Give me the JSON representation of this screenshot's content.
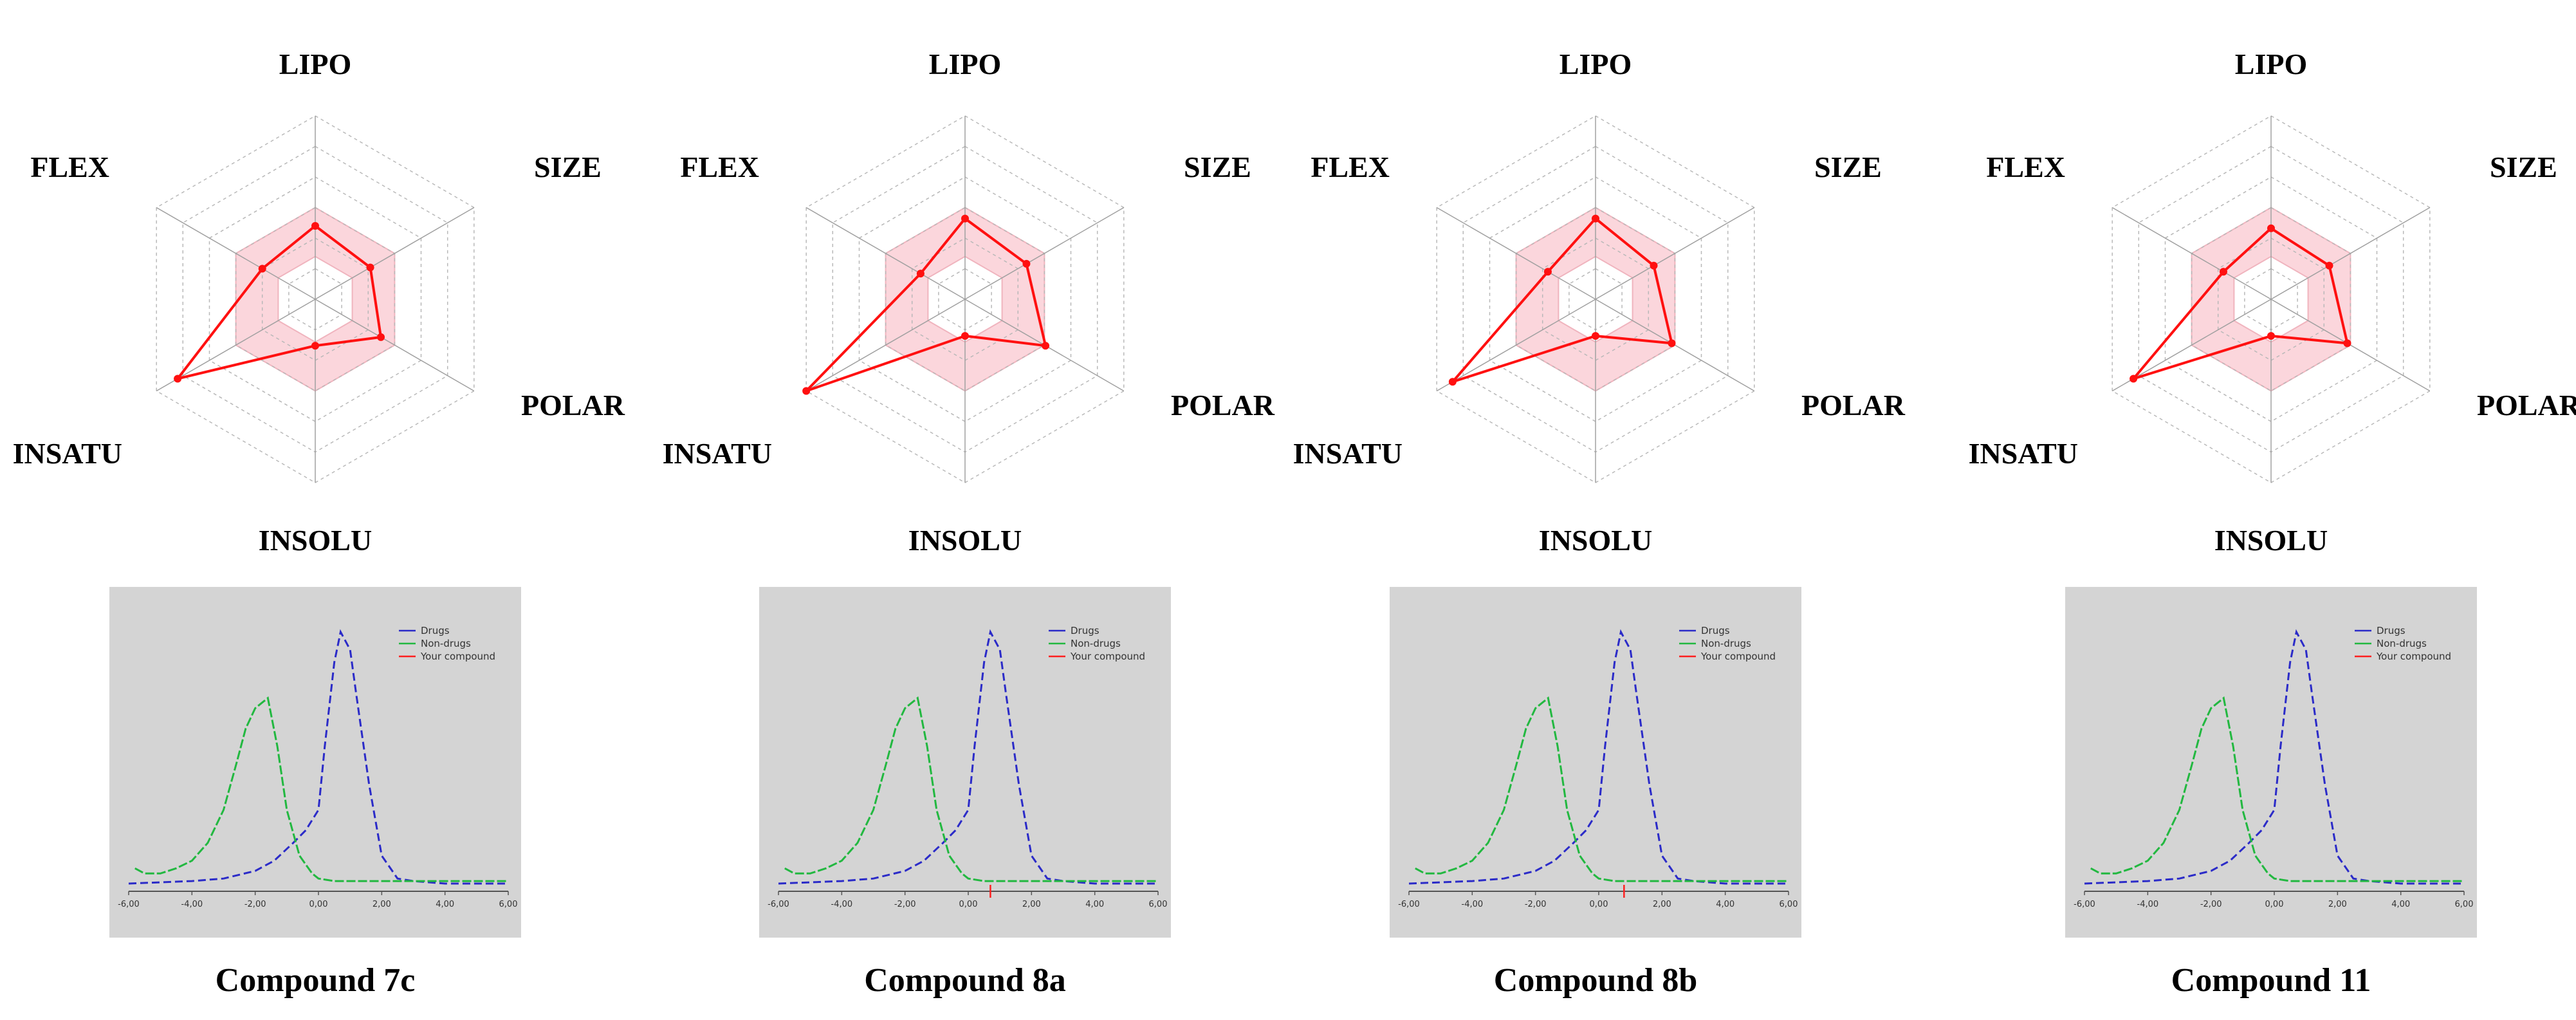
{
  "chart_data": [
    {
      "type": "radar",
      "axes": [
        "LIPO",
        "SIZE",
        "POLAR",
        "INSOLU",
        "INSATU",
        "FLEX"
      ],
      "range": [
        0,
        1.5
      ],
      "optimal_range": [
        0.35,
        0.75
      ],
      "values": [
        0.6,
        0.52,
        0.62,
        0.38,
        1.3,
        0.5
      ],
      "panel": {
        "type": "line",
        "legend": [
          "Drugs",
          "Non-drugs",
          "Your compound"
        ],
        "x_ticks": [
          "-6,00",
          "-4,00",
          "-2,00",
          "0,00",
          "2,00",
          "4,00",
          "6,00"
        ],
        "xlim": [
          -6,
          6
        ],
        "ylim": [
          0,
          1
        ],
        "series": [
          {
            "name": "Drugs",
            "color": "#2b2bc8",
            "x": [
              -6,
              -4,
              -3,
              -2,
              -1.4,
              -0.8,
              -0.4,
              0,
              0.2,
              0.5,
              0.7,
              1,
              1.2,
              1.6,
              2,
              2.5,
              3,
              4,
              5,
              6
            ],
            "y": [
              0.01,
              0.02,
              0.03,
              0.06,
              0.1,
              0.17,
              0.22,
              0.3,
              0.55,
              0.88,
              1,
              0.93,
              0.75,
              0.4,
              0.12,
              0.03,
              0.02,
              0.01,
              0.01,
              0.01
            ]
          },
          {
            "name": "Non-drugs",
            "color": "#22b840",
            "x": [
              -5.8,
              -5.5,
              -5,
              -4.5,
              -4,
              -3.5,
              -3,
              -2.6,
              -2.3,
              -2,
              -1.8,
              -1.6,
              -1.3,
              -1,
              -0.6,
              -0.2,
              0,
              0.5,
              1,
              2,
              3,
              4,
              5,
              6
            ],
            "y": [
              0.07,
              0.05,
              0.05,
              0.07,
              0.1,
              0.17,
              0.3,
              0.48,
              0.62,
              0.7,
              0.72,
              0.74,
              0.55,
              0.3,
              0.12,
              0.05,
              0.03,
              0.02,
              0.02,
              0.02,
              0.02,
              0.02,
              0.02,
              0.02
            ]
          }
        ],
        "compound_x": 0.7,
        "show_compound": false
      },
      "caption": "Compound 7c"
    },
    {
      "type": "radar",
      "axes": [
        "LIPO",
        "SIZE",
        "POLAR",
        "INSOLU",
        "INSATU",
        "FLEX"
      ],
      "range": [
        0,
        1.5
      ],
      "optimal_range": [
        0.35,
        0.75
      ],
      "values": [
        0.66,
        0.58,
        0.76,
        0.3,
        1.5,
        0.42
      ],
      "panel": {
        "type": "line",
        "legend": [
          "Drugs",
          "Non-drugs",
          "Your compound"
        ],
        "x_ticks": [
          "-6,00",
          "-4,00",
          "-2,00",
          "0,00",
          "2,00",
          "4,00",
          "6,00"
        ],
        "xlim": [
          -6,
          6
        ],
        "ylim": [
          0,
          1
        ],
        "series": [
          {
            "name": "Drugs",
            "color": "#2b2bc8",
            "x": [
              -6,
              -4,
              -3,
              -2,
              -1.4,
              -0.8,
              -0.4,
              0,
              0.2,
              0.5,
              0.7,
              1,
              1.2,
              1.6,
              2,
              2.5,
              3,
              4,
              5,
              6
            ],
            "y": [
              0.01,
              0.02,
              0.03,
              0.06,
              0.1,
              0.17,
              0.22,
              0.3,
              0.55,
              0.88,
              1,
              0.93,
              0.75,
              0.4,
              0.12,
              0.03,
              0.02,
              0.01,
              0.01,
              0.01
            ]
          },
          {
            "name": "Non-drugs",
            "color": "#22b840",
            "x": [
              -5.8,
              -5.5,
              -5,
              -4.5,
              -4,
              -3.5,
              -3,
              -2.6,
              -2.3,
              -2,
              -1.8,
              -1.6,
              -1.3,
              -1,
              -0.6,
              -0.2,
              0,
              0.5,
              1,
              2,
              3,
              4,
              5,
              6
            ],
            "y": [
              0.07,
              0.05,
              0.05,
              0.07,
              0.1,
              0.17,
              0.3,
              0.48,
              0.62,
              0.7,
              0.72,
              0.74,
              0.55,
              0.3,
              0.12,
              0.05,
              0.03,
              0.02,
              0.02,
              0.02,
              0.02,
              0.02,
              0.02,
              0.02
            ]
          }
        ],
        "compound_x": 0.7,
        "show_compound": true
      },
      "caption": "Compound 8a"
    },
    {
      "type": "radar",
      "axes": [
        "LIPO",
        "SIZE",
        "POLAR",
        "INSOLU",
        "INSATU",
        "FLEX"
      ],
      "range": [
        0,
        1.5
      ],
      "optimal_range": [
        0.35,
        0.75
      ],
      "values": [
        0.66,
        0.55,
        0.72,
        0.3,
        1.35,
        0.45
      ],
      "panel": {
        "type": "line",
        "legend": [
          "Drugs",
          "Non-drugs",
          "Your compound"
        ],
        "x_ticks": [
          "-6,00",
          "-4,00",
          "-2,00",
          "0,00",
          "2,00",
          "4,00",
          "6,00"
        ],
        "xlim": [
          -6,
          6
        ],
        "ylim": [
          0,
          1
        ],
        "series": [
          {
            "name": "Drugs",
            "color": "#2b2bc8",
            "x": [
              -6,
              -4,
              -3,
              -2,
              -1.4,
              -0.8,
              -0.4,
              0,
              0.2,
              0.5,
              0.7,
              1,
              1.2,
              1.6,
              2,
              2.5,
              3,
              4,
              5,
              6
            ],
            "y": [
              0.01,
              0.02,
              0.03,
              0.06,
              0.1,
              0.17,
              0.22,
              0.3,
              0.55,
              0.88,
              1,
              0.93,
              0.75,
              0.4,
              0.12,
              0.03,
              0.02,
              0.01,
              0.01,
              0.01
            ]
          },
          {
            "name": "Non-drugs",
            "color": "#22b840",
            "x": [
              -5.8,
              -5.5,
              -5,
              -4.5,
              -4,
              -3.5,
              -3,
              -2.6,
              -2.3,
              -2,
              -1.8,
              -1.6,
              -1.3,
              -1,
              -0.6,
              -0.2,
              0,
              0.5,
              1,
              2,
              3,
              4,
              5,
              6
            ],
            "y": [
              0.07,
              0.05,
              0.05,
              0.07,
              0.1,
              0.17,
              0.3,
              0.48,
              0.62,
              0.7,
              0.72,
              0.74,
              0.55,
              0.3,
              0.12,
              0.05,
              0.03,
              0.02,
              0.02,
              0.02,
              0.02,
              0.02,
              0.02,
              0.02
            ]
          }
        ],
        "compound_x": 0.8,
        "show_compound": true
      },
      "caption": "Compound 8b"
    },
    {
      "type": "radar",
      "axes": [
        "LIPO",
        "SIZE",
        "POLAR",
        "INSOLU",
        "INSATU",
        "FLEX"
      ],
      "range": [
        0,
        1.5
      ],
      "optimal_range": [
        0.35,
        0.75
      ],
      "values": [
        0.58,
        0.55,
        0.72,
        0.3,
        1.3,
        0.45
      ],
      "panel": {
        "type": "line",
        "legend": [
          "Drugs",
          "Non-drugs",
          "Your compound"
        ],
        "x_ticks": [
          "-6,00",
          "-4,00",
          "-2,00",
          "0,00",
          "2,00",
          "4,00",
          "6,00"
        ],
        "xlim": [
          -6,
          6
        ],
        "ylim": [
          0,
          1
        ],
        "series": [
          {
            "name": "Drugs",
            "color": "#2b2bc8",
            "x": [
              -6,
              -4,
              -3,
              -2,
              -1.4,
              -0.8,
              -0.4,
              0,
              0.2,
              0.5,
              0.7,
              1,
              1.2,
              1.6,
              2,
              2.5,
              3,
              4,
              5,
              6
            ],
            "y": [
              0.01,
              0.02,
              0.03,
              0.06,
              0.1,
              0.17,
              0.22,
              0.3,
              0.55,
              0.88,
              1,
              0.93,
              0.75,
              0.4,
              0.12,
              0.03,
              0.02,
              0.01,
              0.01,
              0.01
            ]
          },
          {
            "name": "Non-drugs",
            "color": "#22b840",
            "x": [
              -5.8,
              -5.5,
              -5,
              -4.5,
              -4,
              -3.5,
              -3,
              -2.6,
              -2.3,
              -2,
              -1.8,
              -1.6,
              -1.3,
              -1,
              -0.6,
              -0.2,
              0,
              0.5,
              1,
              2,
              3,
              4,
              5,
              6
            ],
            "y": [
              0.07,
              0.05,
              0.05,
              0.07,
              0.1,
              0.17,
              0.3,
              0.48,
              0.62,
              0.7,
              0.72,
              0.74,
              0.55,
              0.3,
              0.12,
              0.05,
              0.03,
              0.02,
              0.02,
              0.02,
              0.02,
              0.02,
              0.02,
              0.02
            ]
          }
        ],
        "compound_x": 0.7,
        "show_compound": false
      },
      "caption": "Compound 11"
    }
  ]
}
